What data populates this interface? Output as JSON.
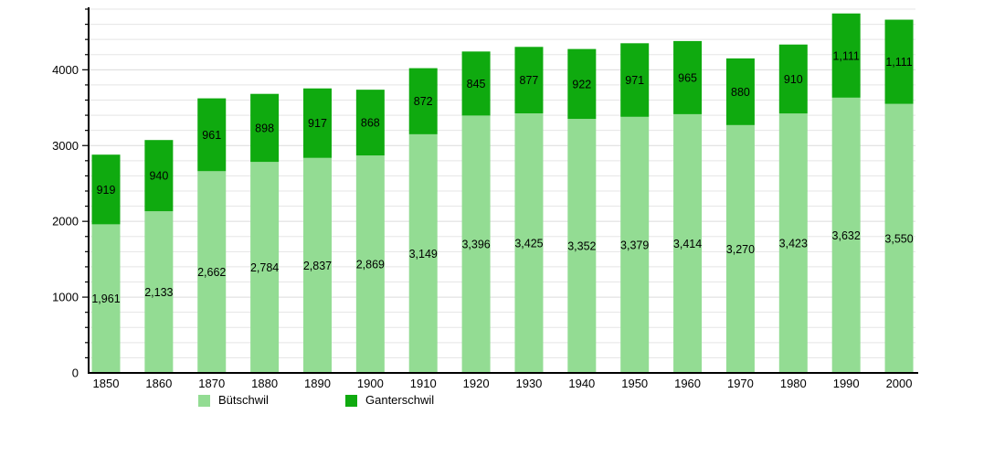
{
  "chart_data": {
    "type": "bar",
    "stacked": true,
    "title": "",
    "xlabel": "",
    "ylabel": "",
    "categories": [
      "1850",
      "1860",
      "1870",
      "1880",
      "1890",
      "1900",
      "1910",
      "1920",
      "1930",
      "1940",
      "1950",
      "1960",
      "1970",
      "1980",
      "1990",
      "2000"
    ],
    "series": [
      {
        "name": "Bütschwil",
        "color": "#93DC93",
        "values": [
          1961,
          2133,
          2662,
          2784,
          2837,
          2869,
          3149,
          3396,
          3425,
          3352,
          3379,
          3414,
          3270,
          3423,
          3632,
          3550
        ]
      },
      {
        "name": "Ganterschwil",
        "color": "#0FAA0F",
        "values": [
          919,
          940,
          961,
          898,
          917,
          868,
          872,
          845,
          877,
          922,
          971,
          965,
          880,
          910,
          1111,
          1111
        ]
      }
    ],
    "value_labels": true,
    "value_label_format": "thousands-comma",
    "ylim": [
      0,
      4800
    ],
    "y_major_step": 1000,
    "y_minor_step": 200,
    "y_tick_labels": [
      "0",
      "1000",
      "2000",
      "3000",
      "4000"
    ],
    "grid": true,
    "legend_position": "bottom",
    "colors": {
      "background": "#FFFFFF",
      "grid_minor": "#E5E5E5",
      "grid_major": "#DCDCDC",
      "axis": "#000000",
      "text": "#000000"
    }
  }
}
